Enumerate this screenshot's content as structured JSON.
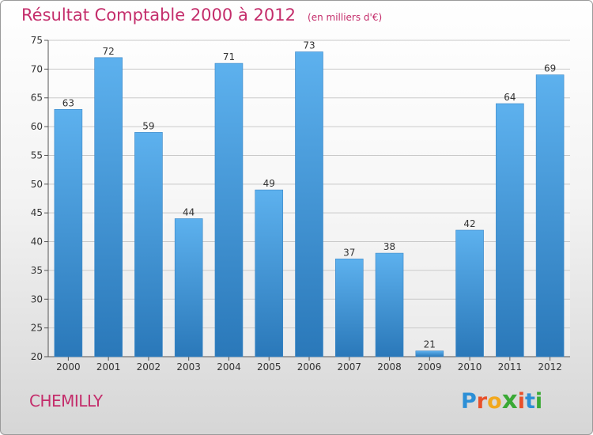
{
  "chart_data": {
    "type": "bar",
    "title": "Résultat Comptable 2000 à 2012",
    "subtitle": "(en milliers d'€)",
    "categories": [
      "2000",
      "2001",
      "2002",
      "2003",
      "2004",
      "2005",
      "2006",
      "2007",
      "2008",
      "2009",
      "2010",
      "2011",
      "2012"
    ],
    "values": [
      63,
      72,
      59,
      44,
      71,
      49,
      73,
      37,
      38,
      21,
      42,
      64,
      69
    ],
    "ylim": [
      20,
      75
    ],
    "yticks": [
      20,
      25,
      30,
      35,
      40,
      45,
      50,
      55,
      60,
      65,
      70,
      75
    ],
    "grid": true,
    "bar_color": "#4ca3e2",
    "xlabel": "",
    "ylabel": ""
  },
  "place": "CHEMILLY",
  "logo": {
    "letters": [
      "P",
      "r",
      "o",
      "x",
      "i",
      "t",
      "i"
    ],
    "colors": [
      "#2c8fd6",
      "#e8502a",
      "#f2a81d",
      "#3aa935",
      "#e8502a",
      "#2c8fd6",
      "#3aa935"
    ]
  },
  "colors": {
    "accent": "#c42d6b",
    "bar": "#4ca3e2",
    "bar_dark": "#2a78b9"
  }
}
